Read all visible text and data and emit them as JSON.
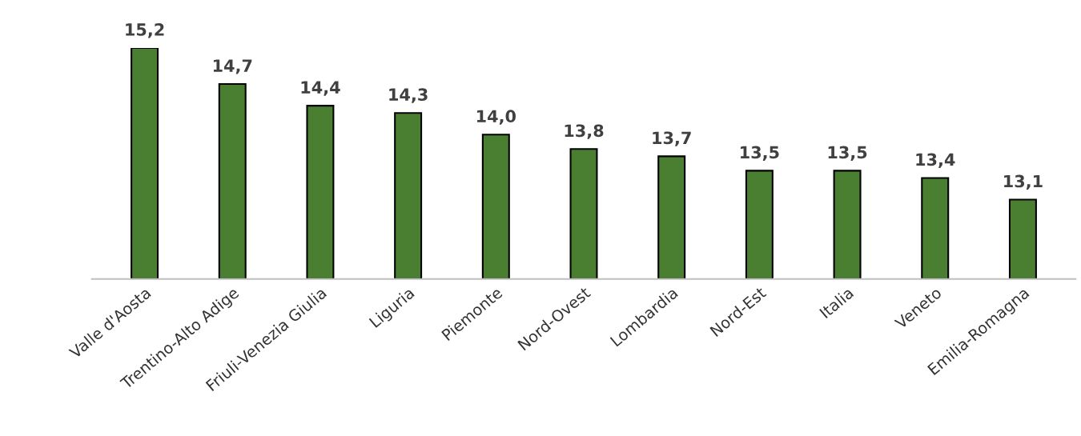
{
  "chart_data": {
    "type": "bar",
    "categories": [
      "Valle d'Aosta",
      "Trentino-Alto Adige",
      "Friuli-Venezia Giulia",
      "Liguria",
      "Piemonte",
      "Nord-Ovest",
      "Lombardia",
      "Nord-Est",
      "Italia",
      "Veneto",
      "Emilia-Romagna"
    ],
    "values": [
      15.2,
      14.7,
      14.4,
      14.3,
      14.0,
      13.8,
      13.7,
      13.5,
      13.5,
      13.4,
      13.1
    ],
    "value_labels": [
      "15,2",
      "14,7",
      "14,4",
      "14,3",
      "14,0",
      "13,8",
      "13,7",
      "13,5",
      "13,5",
      "13,4",
      "13,1"
    ],
    "color": "#4a7f32",
    "ylim": [
      12,
      15.2
    ],
    "tick_labels": "x",
    "grid": false,
    "legend": false
  }
}
